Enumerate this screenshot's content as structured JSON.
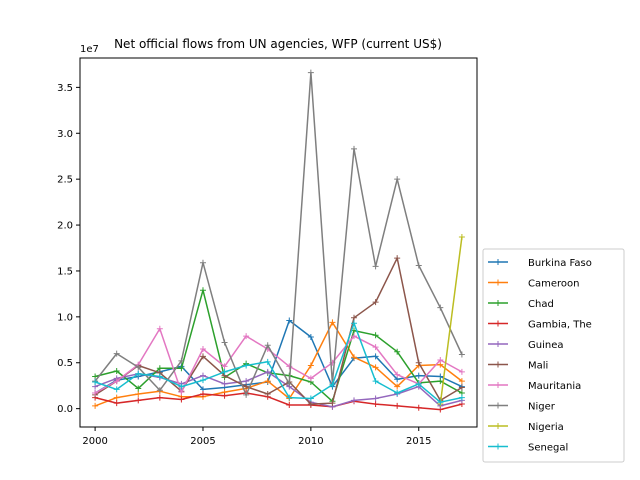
{
  "chart_data": {
    "type": "line",
    "title": "Net official flows from UN agencies, WFP (current US$)",
    "xlabel": "",
    "ylabel": "",
    "y_offset_label": "1e7",
    "xlim": [
      1999.3,
      2017.7
    ],
    "ylim": [
      -0.2,
      3.82
    ],
    "x_ticks": [
      2000,
      2005,
      2010,
      2015
    ],
    "y_ticks": [
      0.0,
      0.5,
      1.0,
      1.5,
      2.0,
      2.5,
      3.0,
      3.5
    ],
    "y_tick_labels": [
      "0.0",
      "0.5",
      "1.0",
      "1.5",
      "2.0",
      "2.5",
      "3.0",
      "3.5"
    ],
    "legend_position": "lower right, outside plot",
    "x": [
      2000,
      2001,
      2002,
      2003,
      2004,
      2005,
      2006,
      2007,
      2008,
      2009,
      2010,
      2011,
      2012,
      2013,
      2014,
      2015,
      2016,
      2017
    ],
    "series": [
      {
        "name": "Burkina Faso",
        "color": "#1f77b4",
        "values": [
          0.17,
          0.31,
          0.35,
          0.4,
          0.46,
          0.21,
          0.23,
          0.26,
          0.29,
          0.96,
          0.78,
          0.24,
          0.55,
          0.57,
          0.32,
          0.36,
          0.35,
          0.24
        ]
      },
      {
        "name": "Cameroon",
        "color": "#ff7f0e",
        "values": [
          0.03,
          0.12,
          0.16,
          0.19,
          0.13,
          0.13,
          0.18,
          0.22,
          0.3,
          0.11,
          0.47,
          0.94,
          0.56,
          0.45,
          0.24,
          0.47,
          0.48,
          0.3
        ]
      },
      {
        "name": "Chad",
        "color": "#2ca02c",
        "values": [
          0.35,
          0.41,
          0.22,
          0.44,
          0.44,
          1.29,
          0.34,
          0.49,
          0.39,
          0.36,
          0.29,
          0.08,
          0.85,
          0.8,
          0.62,
          0.28,
          0.3,
          0.17
        ]
      },
      {
        "name": "Gambia, The",
        "color": "#d62728",
        "values": [
          0.12,
          0.06,
          0.09,
          0.12,
          0.1,
          0.16,
          0.14,
          0.17,
          0.13,
          0.04,
          0.04,
          0.02,
          0.08,
          0.05,
          0.03,
          0.01,
          -0.01,
          0.05
        ]
      },
      {
        "name": "Guinea",
        "color": "#9467bd",
        "values": [
          0.24,
          0.33,
          0.38,
          0.34,
          0.27,
          0.36,
          0.27,
          0.3,
          0.4,
          0.24,
          0.07,
          0.02,
          0.09,
          0.11,
          0.16,
          0.24,
          0.03,
          0.09
        ]
      },
      {
        "name": "Mali",
        "color": "#8c564b",
        "values": [
          0.15,
          0.3,
          0.47,
          0.39,
          0.19,
          0.57,
          0.36,
          0.24,
          0.16,
          0.29,
          0.05,
          0.06,
          0.99,
          1.16,
          1.64,
          0.5,
          0.09,
          0.23
        ]
      },
      {
        "name": "Mauritania",
        "color": "#e377c2",
        "values": [
          0.17,
          0.3,
          0.48,
          0.87,
          0.18,
          0.65,
          0.46,
          0.79,
          0.65,
          0.46,
          0.33,
          0.5,
          0.79,
          0.67,
          0.37,
          0.27,
          0.53,
          0.4
        ]
      },
      {
        "name": "Niger",
        "color": "#7f7f7f",
        "values": [
          0.3,
          0.6,
          0.45,
          0.2,
          0.52,
          1.59,
          0.72,
          0.15,
          0.69,
          0.27,
          3.66,
          0.28,
          2.83,
          1.55,
          2.5,
          1.56,
          1.1,
          0.59
        ]
      },
      {
        "name": "Nigeria",
        "color": "#bcbd22",
        "values": [
          null,
          null,
          null,
          null,
          null,
          null,
          null,
          null,
          null,
          null,
          null,
          null,
          null,
          null,
          null,
          null,
          0.05,
          1.87
        ]
      },
      {
        "name": "Senegal",
        "color": "#17becf",
        "values": [
          0.29,
          0.21,
          0.38,
          0.35,
          0.24,
          0.31,
          0.4,
          0.47,
          0.51,
          0.12,
          0.11,
          0.26,
          0.93,
          0.3,
          0.17,
          0.27,
          0.07,
          0.12
        ]
      }
    ]
  }
}
